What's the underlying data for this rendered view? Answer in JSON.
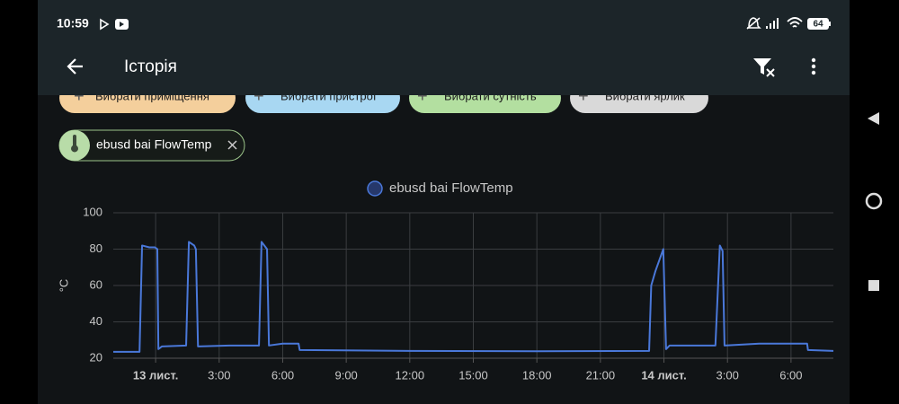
{
  "status_bar": {
    "time": "10:59",
    "battery": "64"
  },
  "app_bar": {
    "title": "Історія"
  },
  "filters": [
    "Вибрати приміщення",
    "Вибрати пристрої",
    "Вибрати сутність",
    "Вибрати ярлик"
  ],
  "selected_chip": {
    "label": "ebusd bai FlowTemp"
  },
  "chart_data": {
    "type": "line",
    "y_label": "°C",
    "x": [
      -2,
      -0.76,
      -0.64,
      -0.3,
      -0.04,
      0.08,
      0.13,
      0.3,
      1.44,
      1.57,
      1.82,
      1.9,
      2.0,
      3.5,
      4.88,
      5.0,
      5.26,
      5.35,
      6.0,
      6.75,
      6.8,
      12,
      18,
      23.3,
      23.4,
      23.6,
      23.97,
      24.1,
      24.27,
      25.5,
      26.43,
      26.64,
      26.77,
      26.86,
      28.5,
      30.76,
      30.8,
      32
    ],
    "series": [
      {
        "name": "ebusd bai FlowTemp",
        "color": "#4a78d9",
        "values": [
          23.5,
          23.5,
          82,
          81,
          81,
          80,
          25,
          26.5,
          27,
          84,
          82,
          80,
          26.5,
          27,
          27,
          84,
          80,
          27,
          28,
          28,
          24.5,
          24,
          23.8,
          24,
          60,
          68,
          80,
          25,
          27,
          27,
          27,
          82,
          79,
          27,
          28,
          28,
          24.5,
          24
        ]
      }
    ],
    "xlim": [
      -2,
      32
    ],
    "xticks": [
      {
        "value": 0,
        "label": "13 лист."
      },
      {
        "value": 3,
        "label": "3:00"
      },
      {
        "value": 6,
        "label": "6:00"
      },
      {
        "value": 9,
        "label": "9:00"
      },
      {
        "value": 12,
        "label": "12:00"
      },
      {
        "value": 15,
        "label": "15:00"
      },
      {
        "value": 18,
        "label": "18:00"
      },
      {
        "value": 21,
        "label": "21:00"
      },
      {
        "value": 24,
        "label": "14 лист."
      },
      {
        "value": 27,
        "label": "3:00"
      },
      {
        "value": 30,
        "label": "6:00"
      }
    ],
    "ylim": [
      20,
      100
    ],
    "yticks": [
      20,
      40,
      60,
      80,
      100
    ],
    "grid": true
  }
}
